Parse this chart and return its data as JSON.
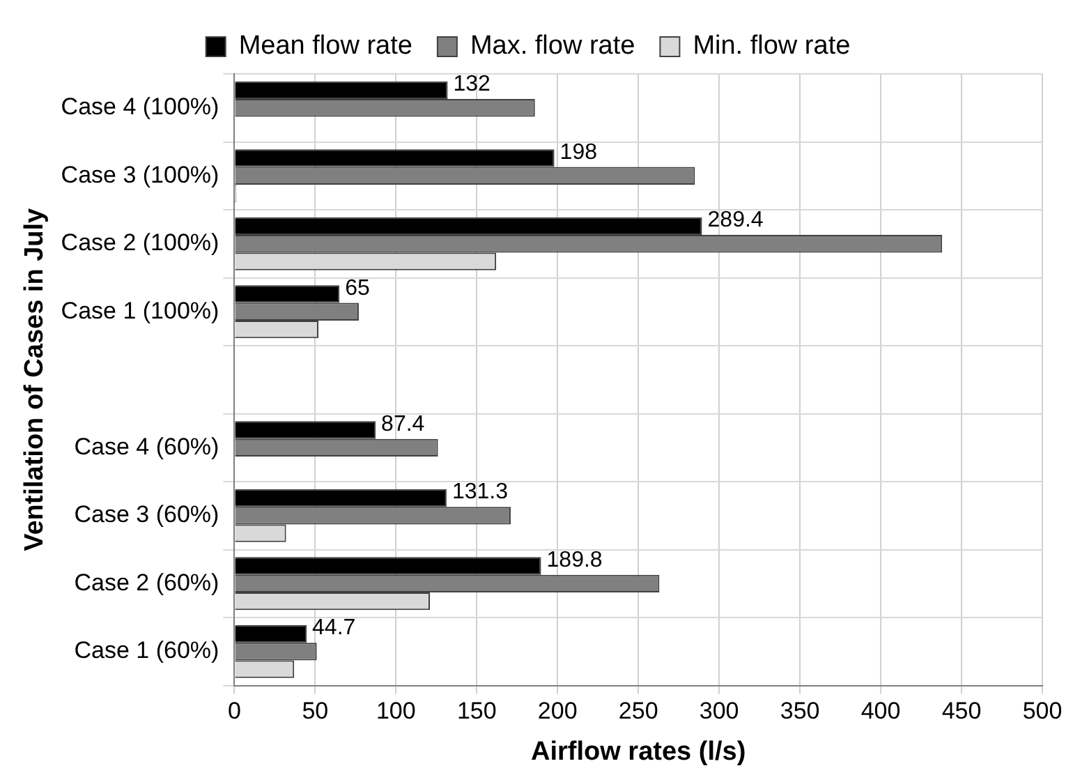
{
  "chart_data": {
    "type": "bar",
    "orientation": "horizontal",
    "xlabel": "Airflow rates (l/s)",
    "ylabel": "Ventilation of Cases in July",
    "categories": [
      "Case 4 (100%)",
      "Case 3 (100%)",
      "Case 2 (100%)",
      "Case 1 (100%)",
      null,
      "Case 4 (60%)",
      "Case 3 (60%)",
      "Case 2 (60%)",
      "Case 1 (60%)"
    ],
    "series": [
      {
        "name": "Mean flow rate",
        "color": "#000000",
        "values": [
          132,
          198,
          289.4,
          65,
          null,
          87.4,
          131.3,
          189.8,
          44.7
        ],
        "value_labels": [
          "132",
          "198",
          "289.4",
          "65",
          null,
          "87.4",
          "131.3",
          "189.8",
          "44.7"
        ]
      },
      {
        "name": "Max. flow rate",
        "color": "#808080",
        "values": [
          186,
          285,
          438,
          77,
          null,
          126,
          171,
          263,
          51
        ]
      },
      {
        "name": "Min. flow rate",
        "color": "#d9d9d9",
        "values": [
          null,
          1,
          162,
          52,
          null,
          null,
          32,
          121,
          37
        ]
      }
    ],
    "xlim": [
      0,
      500
    ],
    "xticks": [
      0,
      50,
      100,
      150,
      200,
      250,
      300,
      350,
      400,
      450,
      500
    ],
    "grid": true,
    "legend": "top"
  }
}
